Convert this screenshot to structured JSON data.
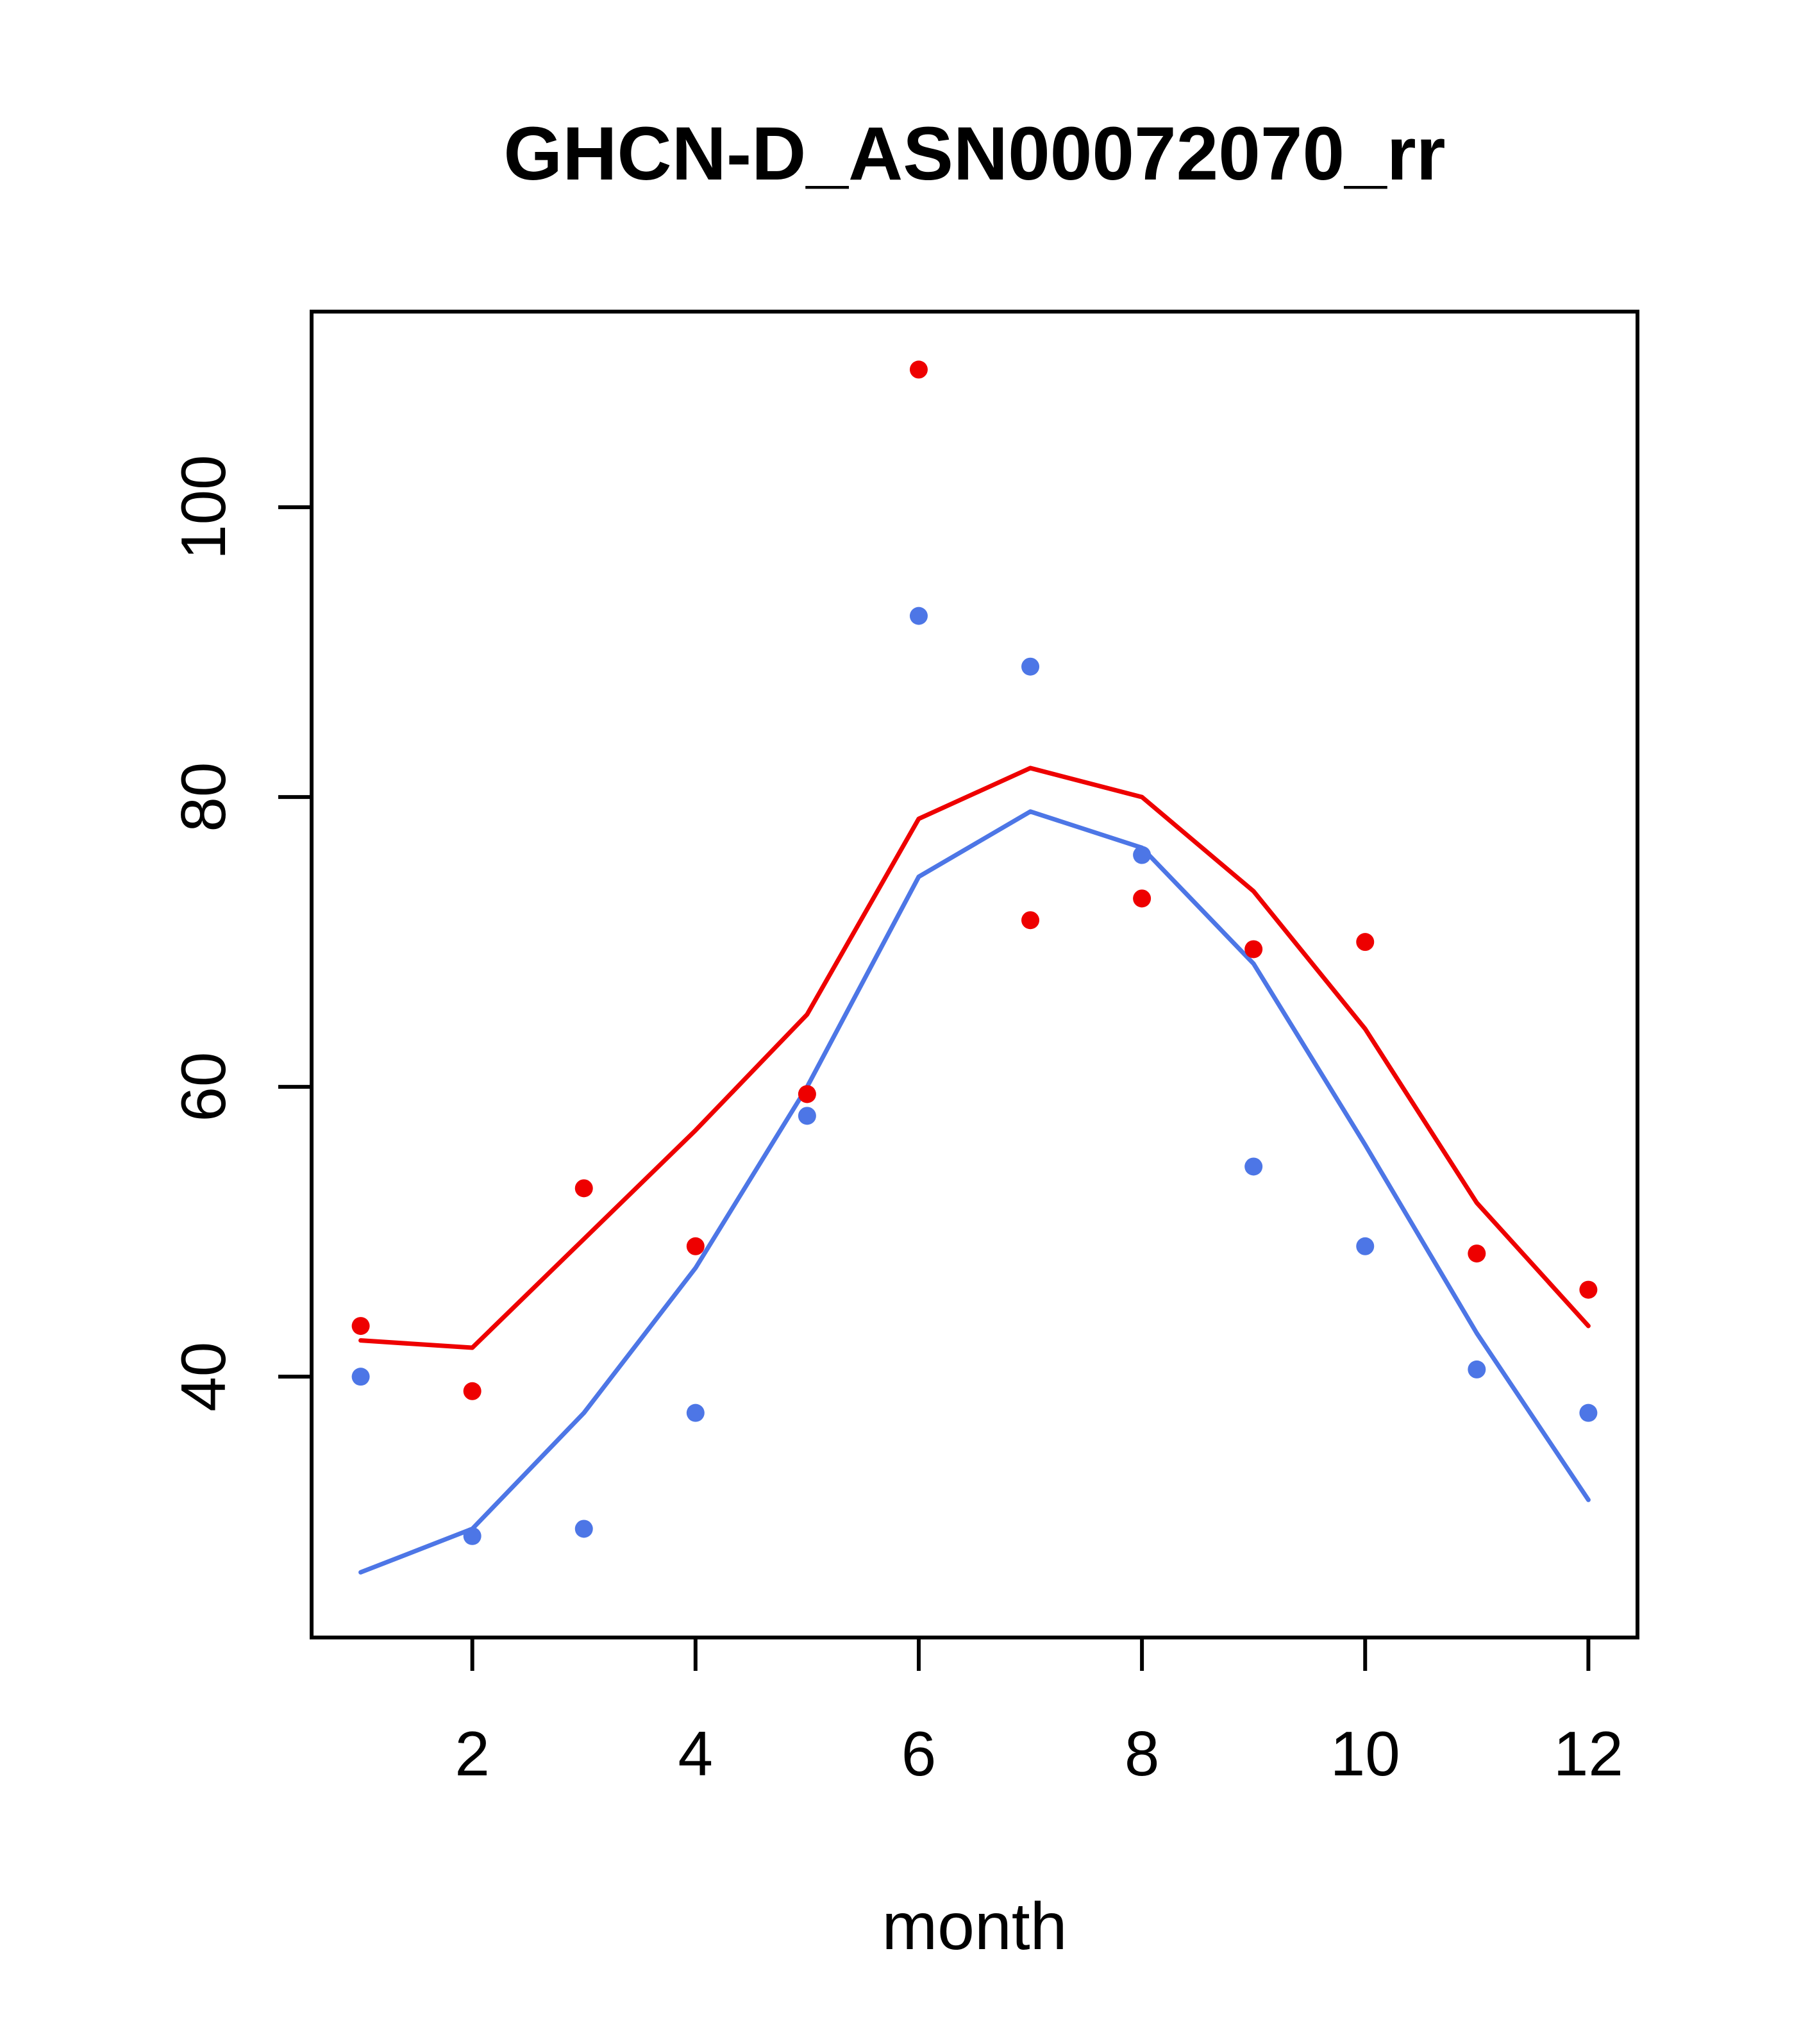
{
  "chart_data": {
    "type": "scatter",
    "title": "GHCN-D_ASN00072070_rr",
    "xlabel": "month",
    "ylabel": "",
    "x": [
      1,
      2,
      3,
      4,
      5,
      6,
      7,
      8,
      9,
      10,
      11,
      12
    ],
    "x_ticks": [
      2,
      4,
      6,
      8,
      10,
      12
    ],
    "y_ticks": [
      40,
      60,
      80,
      100
    ],
    "xlim": [
      0.56,
      12.44
    ],
    "ylim": [
      22,
      113.5
    ],
    "grid": false,
    "legend": "none",
    "colors": {
      "red": "#ee0000",
      "blue": "#4d76e6",
      "axis": "#000000"
    },
    "series": [
      {
        "name": "red-points",
        "kind": "points",
        "color_key": "red",
        "values": [
          43.5,
          39,
          53,
          49,
          59.5,
          109.5,
          71.5,
          73,
          69.5,
          70,
          48.5,
          46
        ]
      },
      {
        "name": "blue-points",
        "kind": "points",
        "color_key": "blue",
        "values": [
          40,
          29,
          29.5,
          37.5,
          58,
          92.5,
          89,
          76,
          54.5,
          49,
          40.5,
          37.5
        ]
      },
      {
        "name": "red-line",
        "kind": "line",
        "color_key": "red",
        "values": [
          42.5,
          42,
          49.5,
          57,
          65,
          78.5,
          82,
          80,
          73.5,
          64,
          52,
          43.5
        ]
      },
      {
        "name": "blue-line",
        "kind": "line",
        "color_key": "blue",
        "values": [
          26.5,
          29.5,
          37.5,
          47.5,
          60,
          74.5,
          79,
          76.5,
          68.5,
          56,
          43,
          31.5
        ]
      }
    ]
  }
}
